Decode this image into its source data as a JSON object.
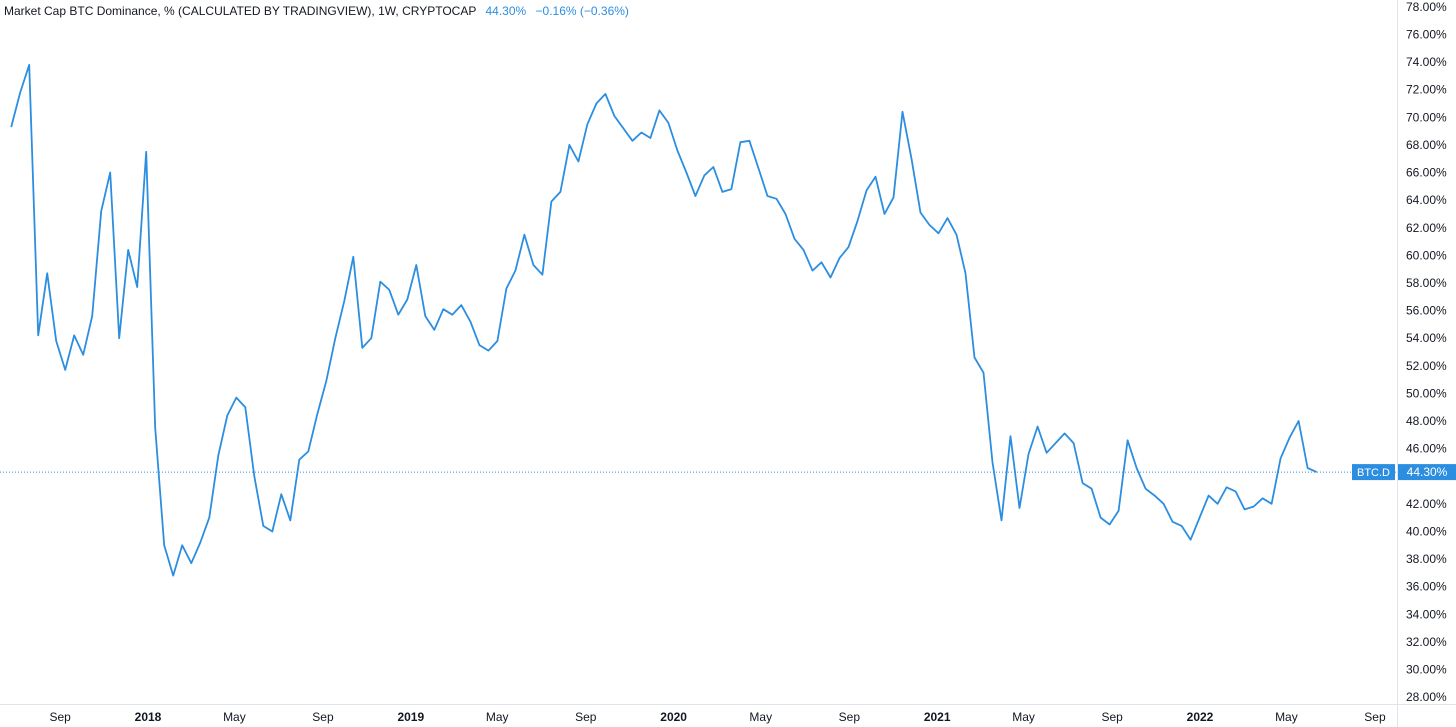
{
  "header": {
    "title": "Market Cap BTC Dominance, % (CALCULATED BY TRADINGVIEW), 1W, CRYPTOCAP",
    "value": "44.30%",
    "change": "−0.16% (−0.36%)"
  },
  "colors": {
    "line": "#2c8ee0",
    "axis_text": "#131722",
    "axis_line": "#e0e3eb",
    "badge": "#2c8ee0"
  },
  "chart_data": {
    "type": "line",
    "series": [
      {
        "name": "BTC.D",
        "values": [
          69.3,
          71.8,
          73.8,
          54.2,
          58.7,
          53.8,
          51.7,
          54.2,
          52.8,
          55.6,
          63.2,
          66.0,
          54.0,
          60.4,
          57.7,
          67.5,
          47.5,
          39.0,
          36.8,
          39.0,
          37.7,
          39.2,
          41.0,
          45.5,
          48.4,
          49.7,
          49.0,
          44.0,
          40.4,
          40.0,
          42.7,
          40.8,
          45.2,
          45.8,
          48.5,
          50.9,
          54.0,
          56.7,
          59.9,
          53.3,
          54.0,
          58.1,
          57.5,
          55.7,
          56.8,
          59.3,
          55.6,
          54.6,
          56.1,
          55.7,
          56.4,
          55.2,
          53.5,
          53.1,
          53.8,
          57.6,
          58.9,
          61.5,
          59.3,
          58.6,
          63.9,
          64.6,
          68.0,
          66.8,
          69.5,
          71.0,
          71.7,
          70.1,
          69.2,
          68.3,
          68.9,
          68.5,
          70.5,
          69.6,
          67.6,
          66.0,
          64.3,
          65.8,
          66.4,
          64.6,
          64.8,
          68.2,
          68.3,
          66.3,
          64.3,
          64.1,
          63.0,
          61.2,
          60.4,
          58.9,
          59.5,
          58.4,
          59.8,
          60.6,
          62.5,
          64.7,
          65.7,
          63.0,
          64.2,
          70.4,
          67.0,
          63.1,
          62.2,
          61.6,
          62.7,
          61.5,
          58.7,
          52.6,
          51.5,
          45.0,
          40.8,
          46.9,
          41.7,
          45.6,
          47.6,
          45.7,
          46.4,
          47.1,
          46.4,
          43.5,
          43.1,
          41.0,
          40.5,
          41.5,
          46.6,
          44.6,
          43.1,
          42.6,
          42.0,
          40.7,
          40.4,
          39.4,
          41.0,
          42.6,
          42.0,
          43.2,
          42.9,
          41.6,
          41.8,
          42.4,
          42.0,
          45.3,
          46.8,
          48.0,
          44.6,
          44.3
        ],
        "start": "2017-06-25",
        "end": "2022-06-12"
      }
    ],
    "ylim": [
      27.5,
      78.5
    ],
    "yticks": [
      "28.00%",
      "30.00%",
      "32.00%",
      "34.00%",
      "36.00%",
      "38.00%",
      "40.00%",
      "42.00%",
      "44.00%",
      "46.00%",
      "48.00%",
      "50.00%",
      "52.00%",
      "54.00%",
      "56.00%",
      "58.00%",
      "60.00%",
      "62.00%",
      "64.00%",
      "66.00%",
      "68.00%",
      "70.00%",
      "72.00%",
      "74.00%",
      "76.00%",
      "78.00%"
    ],
    "xticks": [
      {
        "label": "Sep",
        "date": "2017-09-01",
        "major": false
      },
      {
        "label": "2018",
        "date": "2018-01-01",
        "major": true
      },
      {
        "label": "May",
        "date": "2018-05-01",
        "major": false
      },
      {
        "label": "Sep",
        "date": "2018-09-01",
        "major": false
      },
      {
        "label": "2019",
        "date": "2019-01-01",
        "major": true
      },
      {
        "label": "May",
        "date": "2019-05-01",
        "major": false
      },
      {
        "label": "Sep",
        "date": "2019-09-01",
        "major": false
      },
      {
        "label": "2020",
        "date": "2020-01-01",
        "major": true
      },
      {
        "label": "May",
        "date": "2020-05-01",
        "major": false
      },
      {
        "label": "Sep",
        "date": "2020-09-01",
        "major": false
      },
      {
        "label": "2021",
        "date": "2021-01-01",
        "major": true
      },
      {
        "label": "May",
        "date": "2021-05-01",
        "major": false
      },
      {
        "label": "Sep",
        "date": "2021-09-01",
        "major": false
      },
      {
        "label": "2022",
        "date": "2022-01-01",
        "major": true
      },
      {
        "label": "May",
        "date": "2022-05-01",
        "major": false
      },
      {
        "label": "Sep",
        "date": "2022-09-01",
        "major": false
      }
    ],
    "last_value_marker": {
      "label": "BTC.D",
      "value": "44.30%",
      "y": 44.3
    }
  }
}
